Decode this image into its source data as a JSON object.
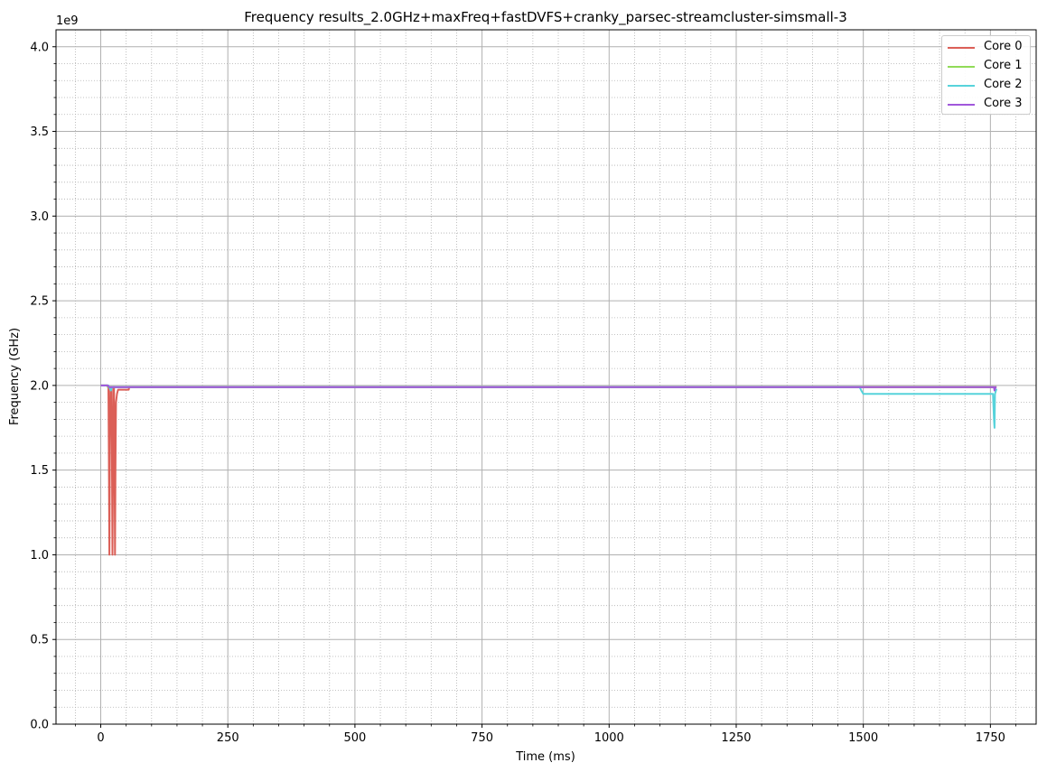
{
  "chart_data": {
    "type": "line",
    "title": "Frequency results_2.0GHz+maxFreq+fastDVFS+cranky_parsec-streamcluster-simsmall-3",
    "xlabel": "Time (ms)",
    "ylabel": "Frequency (GHz)",
    "y_offset_label": "1e9",
    "xlim": [
      -88,
      1840
    ],
    "ylim": [
      0,
      4100000000
    ],
    "x_ticks": [
      0,
      250,
      500,
      750,
      1000,
      1250,
      1500,
      1750
    ],
    "x_tick_labels": [
      "0",
      "250",
      "500",
      "750",
      "1000",
      "1250",
      "1500",
      "1750"
    ],
    "y_ticks": [
      0,
      500000000,
      1000000000,
      1500000000,
      2000000000,
      2500000000,
      3000000000,
      3500000000,
      4000000000
    ],
    "y_tick_labels": [
      "0.0",
      "0.5",
      "1.0",
      "1.5",
      "2.0",
      "2.5",
      "3.0",
      "3.5",
      "4.0"
    ],
    "grid": "major solid, minor dotted",
    "legend_position": "top-right",
    "series": [
      {
        "name": "Core 0",
        "color": "#db5f57",
        "points": [
          [
            0,
            2000000000
          ],
          [
            13,
            2000000000
          ],
          [
            15,
            1990000000
          ],
          [
            16,
            1600000000
          ],
          [
            17,
            1000000000
          ],
          [
            18,
            1700000000
          ],
          [
            19,
            1990000000
          ],
          [
            21,
            1990000000
          ],
          [
            22,
            1600000000
          ],
          [
            23,
            1000000000
          ],
          [
            24,
            1400000000
          ],
          [
            25,
            1990000000
          ],
          [
            26,
            1990000000
          ],
          [
            27,
            1650000000
          ],
          [
            28,
            1000000000
          ],
          [
            29,
            1500000000
          ],
          [
            30,
            1900000000
          ],
          [
            32,
            1950000000
          ],
          [
            34,
            1975000000
          ],
          [
            55,
            1975000000
          ],
          [
            56,
            1990000000
          ],
          [
            1760,
            1990000000
          ],
          [
            1762,
            1990000000
          ]
        ]
      },
      {
        "name": "Core 1",
        "color": "#91db57",
        "points": [
          [
            0,
            2000000000
          ],
          [
            12,
            2000000000
          ],
          [
            14,
            1990000000
          ],
          [
            1762,
            1990000000
          ]
        ]
      },
      {
        "name": "Core 2",
        "color": "#57d3db",
        "points": [
          [
            0,
            2000000000
          ],
          [
            15,
            2000000000
          ],
          [
            18,
            1980000000
          ],
          [
            20,
            1970000000
          ],
          [
            22,
            1990000000
          ],
          [
            1493,
            1990000000
          ],
          [
            1496,
            1970000000
          ],
          [
            1500,
            1950000000
          ],
          [
            1755,
            1950000000
          ],
          [
            1757,
            1800000000
          ],
          [
            1758,
            1750000000
          ],
          [
            1759,
            1950000000
          ],
          [
            1762,
            1980000000
          ]
        ]
      },
      {
        "name": "Core 3",
        "color": "#a157db",
        "points": [
          [
            0,
            2000000000
          ],
          [
            14,
            2000000000
          ],
          [
            16,
            1990000000
          ],
          [
            1757,
            1990000000
          ],
          [
            1758,
            1970000000
          ],
          [
            1760,
            1990000000
          ],
          [
            1762,
            1990000000
          ]
        ]
      }
    ]
  }
}
